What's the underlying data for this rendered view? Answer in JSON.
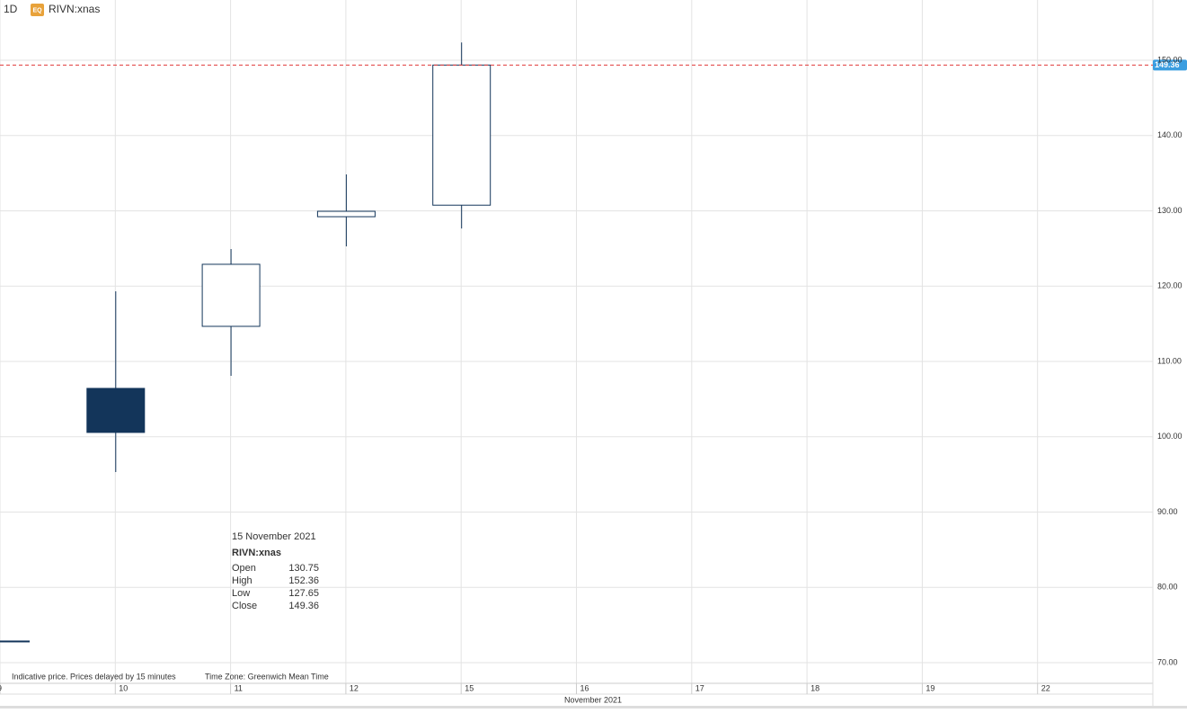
{
  "symbol": "RIVN:xnas",
  "toolbar": {
    "interval": "1D",
    "badge": "EQ"
  },
  "chart_data": {
    "type": "candlestick",
    "categories": [
      "9",
      "10",
      "11",
      "12",
      "15",
      "16",
      "17",
      "18",
      "19",
      "22"
    ],
    "open": [
      72.87,
      106.42,
      114.66,
      129.22,
      130.75,
      null,
      null,
      null,
      null,
      null
    ],
    "high": [
      72.87,
      119.31,
      124.93,
      134.84,
      152.36,
      null,
      null,
      null,
      null,
      null
    ],
    "low": [
      72.87,
      95.31,
      108.09,
      125.28,
      127.65,
      null,
      null,
      null,
      null,
      null
    ],
    "close": [
      72.87,
      100.57,
      122.9,
      129.94,
      149.36,
      null,
      null,
      null,
      null,
      null
    ],
    "xlabel": "November 2021",
    "ylim": [
      67.25,
      158
    ],
    "yticks": [
      {
        "value": 70,
        "label": "70.00"
      },
      {
        "value": 80,
        "label": "80.00"
      },
      {
        "value": 90,
        "label": "90.00"
      },
      {
        "value": 100,
        "label": "100.00"
      },
      {
        "value": 110,
        "label": "110.00"
      },
      {
        "value": 120,
        "label": "120.00"
      },
      {
        "value": 130,
        "label": "130.00"
      },
      {
        "value": 140,
        "label": "140.00"
      },
      {
        "value": 150,
        "label": "150.00"
      }
    ],
    "grid": true,
    "up_color": "#ffffff",
    "down_color": "#13355a",
    "edge_color": "#13355a",
    "last_price": {
      "value": 149.36,
      "label": "149.36"
    },
    "last_price_line_color": "#e03a3a",
    "last_price_box_color": "#3a9de0"
  },
  "footnotes": [
    "Indicative price. Prices delayed by 15 minutes",
    "Time Zone: Greenwich Mean Time"
  ],
  "tooltip": {
    "date": "15 November 2021",
    "fields": [
      "Open",
      "High",
      "Low",
      "Close"
    ]
  }
}
